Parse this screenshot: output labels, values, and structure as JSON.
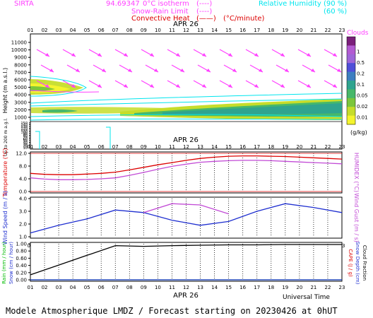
{
  "header": {
    "site": "SIRTA",
    "coord": "94.69347",
    "legend_isotherm": "0°C isotherm",
    "legend_snow": "Snow-Rain Limit",
    "legend_convective": "Convective Heat",
    "legend_convective_unit": "(°C/minute)",
    "legend_rh": "Relative Humidity",
    "legend_rh_90": "90 %",
    "legend_rh_60": "60 %",
    "legend_rh_90_paren": "(90 %)",
    "legend_rh_60_paren": "(60 %)"
  },
  "hours": [
    "01",
    "02",
    "03",
    "04",
    "05",
    "06",
    "07",
    "08",
    "09",
    "10",
    "11",
    "12",
    "13",
    "14",
    "15",
    "16",
    "17",
    "18",
    "19",
    "20",
    "21",
    "22",
    "23"
  ],
  "date_label": "APR 26",
  "footer": {
    "universal_time": "Universal Time",
    "model_line": "Modele Atmospherique LMDZ / Forecast starting on 20230426 at 0hUT"
  },
  "colors": {
    "magenta": "#ff40ff",
    "cyan": "#00e5ee",
    "red": "#dd0000",
    "blue": "#1f2fd0",
    "violet": "#c24bd6",
    "green": "#00bb00",
    "black": "#000000"
  },
  "chart_data": [
    {
      "type": "heatmap",
      "title": "",
      "ylabel": "Height (m a.s.l.)",
      "ylabel_low": "Up to 200 m a.g.l.",
      "y_ticks_upper": [
        1000,
        2000,
        3000,
        4000,
        5000,
        6000,
        7000,
        8000,
        9000,
        10000,
        11000
      ],
      "y_ticks_lower": [
        10,
        20,
        30,
        40,
        50,
        60,
        70,
        80,
        90,
        100,
        110,
        120,
        130,
        140,
        150
      ],
      "colorbar_title": "Clouds",
      "colorbar_unit": "(g/kg)",
      "colorbar_ticks": [
        "1",
        "0.5",
        "0.2",
        "0.1",
        "0.05",
        "0.02",
        "0.01"
      ],
      "colorbar_colors": [
        "#7b1f7b",
        "#b35bd2",
        "#9e66d8",
        "#4f4fd8",
        "#3d7ec0",
        "#2fa48f",
        "#47b86a",
        "#7cc63c",
        "#c6dd2a",
        "#f4f42d"
      ],
      "wind_arrows": "magenta arrows pointing down-right (westerly/north-westerly flow)"
    },
    {
      "type": "line",
      "ylabel": "Temperature (°C)",
      "ylabel_right": "HUMIDEX (°C)",
      "ylim": [
        0,
        12
      ],
      "y_ticks": [
        "0.0",
        "4.0",
        "8.0",
        "12.0"
      ],
      "x": [
        "01",
        "02",
        "03",
        "04",
        "05",
        "06",
        "07",
        "08",
        "09",
        "10",
        "11",
        "12",
        "13",
        "14",
        "15",
        "16",
        "17",
        "18",
        "19",
        "20",
        "21",
        "22",
        "23"
      ],
      "series": [
        {
          "name": "Temperature",
          "color": "red",
          "values": [
            5.7,
            5.4,
            5.3,
            5.3,
            5.5,
            5.7,
            6.1,
            6.8,
            7.6,
            8.4,
            9.1,
            9.8,
            10.4,
            10.8,
            11.1,
            11.2,
            11.2,
            11.1,
            11.0,
            10.8,
            10.6,
            10.4,
            10.2
          ]
        },
        {
          "name": "HUMIDEX",
          "color": "violet",
          "values": [
            4.3,
            3.9,
            3.7,
            3.7,
            3.8,
            4.0,
            4.3,
            5.1,
            6.0,
            7.0,
            7.9,
            8.6,
            9.2,
            9.5,
            9.7,
            9.8,
            9.8,
            9.7,
            9.5,
            9.3,
            9.1,
            8.9,
            8.7
          ]
        }
      ]
    },
    {
      "type": "line",
      "ylabel": "Wind Speed (m / s)",
      "ylabel_right": "Wind Gust (m / s)",
      "ylim": [
        1,
        4
      ],
      "y_ticks": [
        "1.0",
        "2.0",
        "3.0",
        "4.0"
      ],
      "x": [
        "01",
        "03",
        "05",
        "07",
        "09",
        "11",
        "13",
        "15",
        "17",
        "19",
        "21",
        "23"
      ],
      "series": [
        {
          "name": "Wind Speed",
          "color": "blue",
          "values": [
            1.3,
            1.9,
            2.4,
            3.1,
            2.9,
            2.3,
            1.9,
            2.2,
            3.0,
            3.6,
            3.3,
            2.9
          ]
        },
        {
          "name": "Wind Gust",
          "color": "violet",
          "values": [
            null,
            null,
            null,
            null,
            2.9,
            3.6,
            3.5,
            2.8,
            null,
            null,
            null,
            null
          ]
        }
      ]
    },
    {
      "type": "line",
      "ylabel": "Rain (mm / hour)",
      "ylabel_2": "Snow (cm / hour)",
      "ylabel_right": "CAPE (J / g)",
      "ylabel_right_2": "Snow Depth (cm)",
      "ylabel_right_3": "Cloud Fraction",
      "ylim": [
        0,
        1
      ],
      "y_ticks": [
        "0.00",
        "0.20",
        "0.40",
        "0.60",
        "0.80",
        "1.00"
      ],
      "x": [
        "01",
        "03",
        "05",
        "07",
        "09",
        "11",
        "13",
        "15",
        "17",
        "19",
        "21",
        "23"
      ],
      "series": [
        {
          "name": "Cloud Fraction",
          "color": "black",
          "values": [
            0.14,
            0.41,
            0.68,
            0.95,
            0.93,
            0.95,
            0.96,
            0.97,
            0.97,
            0.98,
            0.98,
            0.98
          ]
        },
        {
          "name": "Rain",
          "color": "green",
          "values": [
            0,
            0,
            0,
            0,
            0,
            0,
            0,
            0,
            0,
            0,
            0,
            0
          ]
        },
        {
          "name": "Snow",
          "color": "blue",
          "values": [
            0,
            0,
            0,
            0,
            0,
            0,
            0,
            0,
            0,
            0,
            0,
            0
          ]
        }
      ]
    }
  ]
}
